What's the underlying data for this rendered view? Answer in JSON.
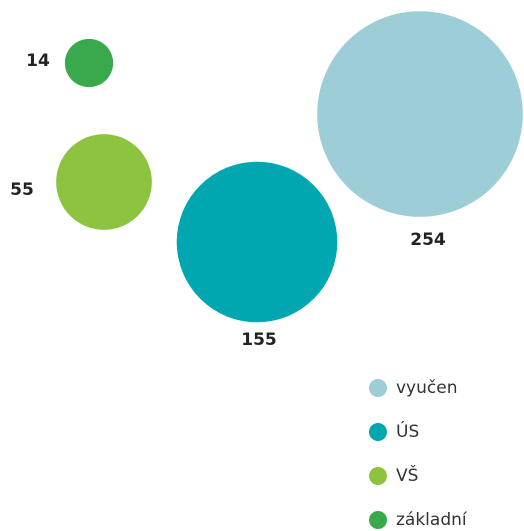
{
  "chart_data": {
    "type": "bubble",
    "categories": [
      "vyučen",
      "ÚS",
      "VŠ",
      "základní"
    ],
    "values": [
      254,
      155,
      55,
      14
    ],
    "colors": [
      "#9dcdd6",
      "#00a7b1",
      "#8cc43f",
      "#3aa94b"
    ]
  }
}
